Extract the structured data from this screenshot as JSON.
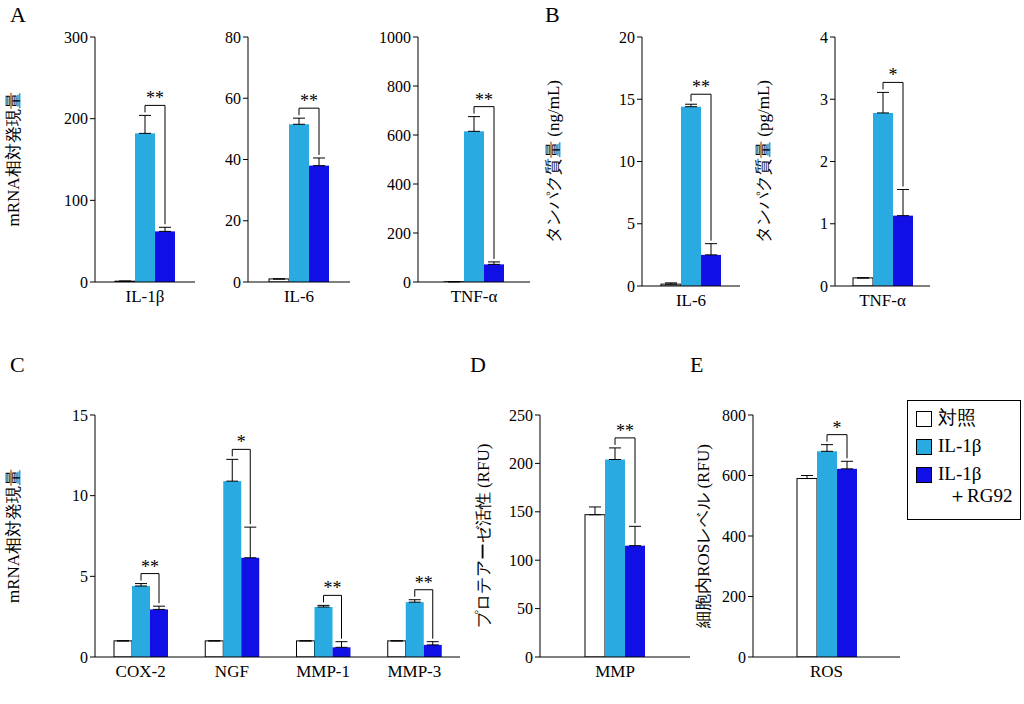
{
  "chart_data": [
    {
      "type": "bar",
      "label": "A",
      "ylabel": "mRNA相対発現量",
      "categories": [
        "IL-1β"
      ],
      "ylim": [
        0,
        300
      ],
      "yticks": [
        0,
        100,
        200,
        300
      ],
      "series": [
        {
          "name": "対照",
          "color": "#ffffff",
          "values": [
            1
          ],
          "errors": [
            0
          ]
        },
        {
          "name": "IL-1β",
          "color": "#29abe2",
          "values": [
            182
          ],
          "errors": [
            22
          ]
        },
        {
          "name": "IL-1β＋RG92",
          "color": "#1010e6",
          "values": [
            62
          ],
          "errors": [
            5
          ]
        }
      ],
      "annotations": [
        {
          "category": "IL-1β",
          "text": "**"
        }
      ]
    },
    {
      "type": "bar",
      "categories": [
        "IL-6"
      ],
      "ylim": [
        0,
        80
      ],
      "yticks": [
        0,
        20,
        40,
        60,
        80
      ],
      "series": [
        {
          "name": "対照",
          "color": "#ffffff",
          "values": [
            1
          ],
          "errors": [
            0
          ]
        },
        {
          "name": "IL-1β",
          "color": "#29abe2",
          "values": [
            51.5
          ],
          "errors": [
            2
          ]
        },
        {
          "name": "IL-1β＋RG92",
          "color": "#1010e6",
          "values": [
            38
          ],
          "errors": [
            2.5
          ]
        }
      ],
      "annotations": [
        {
          "category": "IL-6",
          "text": "**"
        }
      ]
    },
    {
      "type": "bar",
      "categories": [
        "TNF-α"
      ],
      "ylim": [
        0,
        1000
      ],
      "yticks": [
        0,
        200,
        400,
        600,
        800,
        1000
      ],
      "series": [
        {
          "name": "対照",
          "color": "#ffffff",
          "values": [
            1
          ],
          "errors": [
            0
          ]
        },
        {
          "name": "IL-1β",
          "color": "#29abe2",
          "values": [
            615
          ],
          "errors": [
            60
          ]
        },
        {
          "name": "IL-1β＋RG92",
          "color": "#1010e6",
          "values": [
            72
          ],
          "errors": [
            10
          ]
        }
      ],
      "annotations": [
        {
          "category": "TNF-α",
          "text": "**"
        }
      ]
    },
    {
      "type": "bar",
      "label": "B",
      "ylabel": "タンパク質量 (ng/mL)",
      "categories": [
        "IL-6"
      ],
      "ylim": [
        0,
        20
      ],
      "yticks": [
        0,
        5,
        10,
        15,
        20
      ],
      "series": [
        {
          "name": "対照",
          "color": "#ffffff",
          "values": [
            0.15
          ],
          "errors": [
            0.1
          ]
        },
        {
          "name": "IL-1β",
          "color": "#29abe2",
          "values": [
            14.4
          ],
          "errors": [
            0.2
          ]
        },
        {
          "name": "IL-1β＋RG92",
          "color": "#1010e6",
          "values": [
            2.5
          ],
          "errors": [
            0.9
          ]
        }
      ],
      "annotations": [
        {
          "category": "IL-6",
          "text": "**"
        }
      ]
    },
    {
      "type": "bar",
      "ylabel": "タンパク質量 (pg/mL)",
      "categories": [
        "TNF-α"
      ],
      "ylim": [
        0,
        4
      ],
      "yticks": [
        0,
        1,
        2,
        3,
        4
      ],
      "series": [
        {
          "name": "対照",
          "color": "#ffffff",
          "values": [
            0.13
          ],
          "errors": [
            0
          ]
        },
        {
          "name": "IL-1β",
          "color": "#29abe2",
          "values": [
            2.78
          ],
          "errors": [
            0.33
          ]
        },
        {
          "name": "IL-1β＋RG92",
          "color": "#1010e6",
          "values": [
            1.13
          ],
          "errors": [
            0.42
          ]
        }
      ],
      "annotations": [
        {
          "category": "TNF-α",
          "text": "*"
        }
      ]
    },
    {
      "type": "bar",
      "label": "C",
      "ylabel": "mRNA相対発現量",
      "categories": [
        "COX-2",
        "NGF",
        "MMP-1",
        "MMP-3"
      ],
      "ylim": [
        0,
        15
      ],
      "yticks": [
        0,
        5,
        10,
        15
      ],
      "series": [
        {
          "name": "対照",
          "color": "#ffffff",
          "values": [
            1,
            1,
            1,
            1
          ],
          "errors": [
            0,
            0,
            0,
            0
          ]
        },
        {
          "name": "IL-1β",
          "color": "#29abe2",
          "values": [
            4.4,
            10.9,
            3.1,
            3.4
          ],
          "errors": [
            0.15,
            1.35,
            0.1,
            0.15
          ]
        },
        {
          "name": "IL-1β＋RG92",
          "color": "#1010e6",
          "values": [
            2.95,
            6.15,
            0.6,
            0.75
          ],
          "errors": [
            0.2,
            1.9,
            0.35,
            0.2
          ]
        }
      ],
      "annotations": [
        {
          "category": "COX-2",
          "text": "**"
        },
        {
          "category": "NGF",
          "text": "*"
        },
        {
          "category": "MMP-1",
          "text": "**"
        },
        {
          "category": "MMP-3",
          "text": "**"
        }
      ]
    },
    {
      "type": "bar",
      "label": "D",
      "ylabel": "プロテアーゼ活性 (RFU)",
      "categories": [
        "MMP"
      ],
      "ylim": [
        0,
        250
      ],
      "yticks": [
        0,
        50,
        100,
        150,
        200,
        250
      ],
      "series": [
        {
          "name": "対照",
          "color": "#ffffff",
          "values": [
            147
          ],
          "errors": [
            8
          ]
        },
        {
          "name": "IL-1β",
          "color": "#29abe2",
          "values": [
            204
          ],
          "errors": [
            12
          ]
        },
        {
          "name": "IL-1β＋RG92",
          "color": "#1010e6",
          "values": [
            115
          ],
          "errors": [
            20
          ]
        }
      ],
      "annotations": [
        {
          "category": "MMP",
          "text": "**"
        }
      ]
    },
    {
      "type": "bar",
      "label": "E",
      "ylabel": "細胞内ROSレベル (RFU)",
      "categories": [
        "ROS"
      ],
      "ylim": [
        0,
        800
      ],
      "yticks": [
        0,
        200,
        400,
        600,
        800
      ],
      "legend": "right",
      "series": [
        {
          "name": "対照",
          "color": "#ffffff",
          "values": [
            590
          ],
          "errors": [
            10
          ]
        },
        {
          "name": "IL-1β",
          "color": "#29abe2",
          "values": [
            680
          ],
          "errors": [
            22
          ]
        },
        {
          "name": "IL-1β＋RG92",
          "color": "#1010e6",
          "values": [
            622
          ],
          "errors": [
            25
          ]
        }
      ],
      "annotations": [
        {
          "category": "ROS",
          "text": "*"
        }
      ]
    }
  ]
}
